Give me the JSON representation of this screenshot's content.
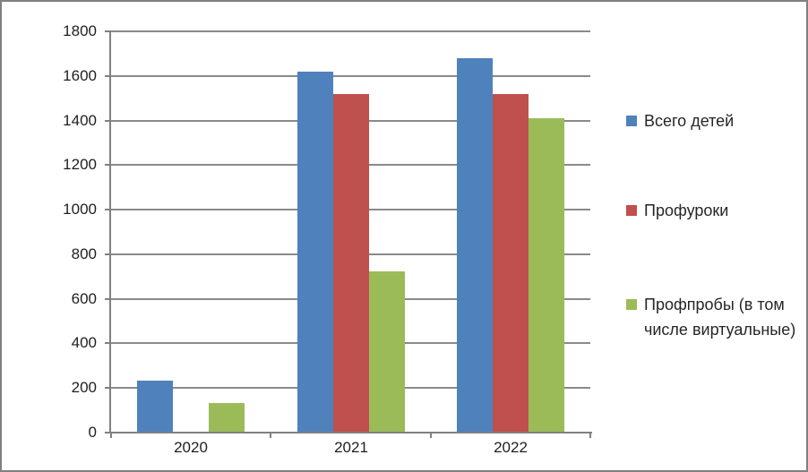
{
  "chart_data": {
    "type": "bar",
    "title": "",
    "xlabel": "",
    "ylabel": "",
    "categories": [
      "2020",
      "2021",
      "2022"
    ],
    "series": [
      {
        "name": "Всего детей",
        "color": "#4F81BD",
        "values": [
          230,
          1615,
          1675
        ]
      },
      {
        "name": "Профуроки",
        "color": "#C0504D",
        "values": [
          0,
          1515,
          1515
        ]
      },
      {
        "name": "Профпробы (в том числе виртуальные)",
        "color": "#9BBB59",
        "values": [
          130,
          720,
          1405
        ]
      }
    ],
    "ylim": [
      0,
      1800
    ],
    "yticks": [
      0,
      200,
      400,
      600,
      800,
      1000,
      1200,
      1400,
      1600,
      1800
    ],
    "grid": true,
    "legend_position": "right"
  },
  "colors": {
    "axis": "#808080",
    "gridline": "#8a8a8a",
    "tick_text": "#1f1f1f",
    "legend_text": "#262626",
    "background": "#ffffff",
    "frame_border": "#808080"
  }
}
